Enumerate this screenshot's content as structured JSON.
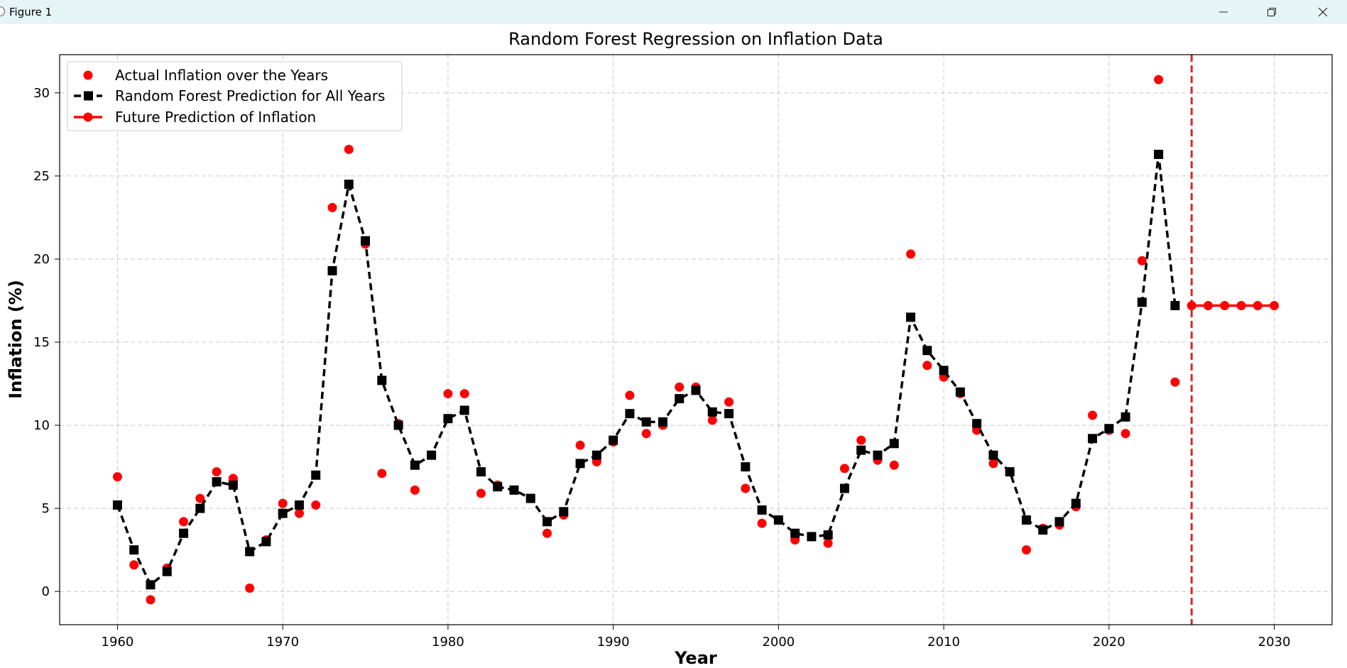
{
  "window": {
    "title": "Figure 1",
    "controls": [
      "minimize-icon",
      "restore-icon",
      "close-icon"
    ]
  },
  "chart_data": {
    "type": "line",
    "title": "Random Forest Regression on Inflation Data",
    "xlabel": "Year",
    "ylabel": "Inflation (%)",
    "xlim": [
      1956.5,
      2033.5
    ],
    "ylim": [
      -2,
      32.3
    ],
    "xticks": [
      1960,
      1970,
      1980,
      1990,
      2000,
      2010,
      2020,
      2030
    ],
    "yticks": [
      0,
      5,
      10,
      15,
      20,
      25,
      30
    ],
    "grid": true,
    "legend_position": "top-left",
    "cutoff_line_x": 2025,
    "colors": {
      "actual": "#ff0000",
      "prediction": "#000000",
      "future": "#ff0000",
      "cutoff": "#d62728"
    },
    "series": [
      {
        "name": "Actual Inflation over the Years",
        "style": "scatter",
        "x": [
          1960,
          1961,
          1962,
          1963,
          1964,
          1965,
          1966,
          1967,
          1968,
          1969,
          1970,
          1971,
          1972,
          1973,
          1974,
          1975,
          1976,
          1977,
          1978,
          1979,
          1980,
          1981,
          1982,
          1983,
          1984,
          1985,
          1986,
          1987,
          1988,
          1989,
          1990,
          1991,
          1992,
          1993,
          1994,
          1995,
          1996,
          1997,
          1998,
          1999,
          2000,
          2001,
          2002,
          2003,
          2004,
          2005,
          2006,
          2007,
          2008,
          2009,
          2010,
          2011,
          2012,
          2013,
          2014,
          2015,
          2016,
          2017,
          2018,
          2019,
          2020,
          2021,
          2022,
          2023,
          2024
        ],
        "y": [
          6.9,
          1.6,
          -0.5,
          1.4,
          4.2,
          5.6,
          7.2,
          6.8,
          0.2,
          3.1,
          5.3,
          4.7,
          5.2,
          23.1,
          26.6,
          20.9,
          7.1,
          10.1,
          6.1,
          8.2,
          11.9,
          11.9,
          5.9,
          6.4,
          6.1,
          5.6,
          3.5,
          4.6,
          8.8,
          7.8,
          9.0,
          11.8,
          9.5,
          10.0,
          12.3,
          12.3,
          10.3,
          11.4,
          6.2,
          4.1,
          4.3,
          3.1,
          3.3,
          2.9,
          7.4,
          9.1,
          7.9,
          7.6,
          20.3,
          13.6,
          12.9,
          11.9,
          9.7,
          7.7,
          7.2,
          2.5,
          3.8,
          4.0,
          5.1,
          10.6,
          9.7,
          9.5,
          19.9,
          30.8,
          12.6
        ]
      },
      {
        "name": "Random Forest Prediction for All Years",
        "style": "dashed-line-square",
        "x": [
          1960,
          1961,
          1962,
          1963,
          1964,
          1965,
          1966,
          1967,
          1968,
          1969,
          1970,
          1971,
          1972,
          1973,
          1974,
          1975,
          1976,
          1977,
          1978,
          1979,
          1980,
          1981,
          1982,
          1983,
          1984,
          1985,
          1986,
          1987,
          1988,
          1989,
          1990,
          1991,
          1992,
          1993,
          1994,
          1995,
          1996,
          1997,
          1998,
          1999,
          2000,
          2001,
          2002,
          2003,
          2004,
          2005,
          2006,
          2007,
          2008,
          2009,
          2010,
          2011,
          2012,
          2013,
          2014,
          2015,
          2016,
          2017,
          2018,
          2019,
          2020,
          2021,
          2022,
          2023,
          2024
        ],
        "y": [
          5.2,
          2.5,
          0.4,
          1.2,
          3.5,
          5.0,
          6.6,
          6.4,
          2.4,
          3.0,
          4.7,
          5.2,
          7.0,
          19.3,
          24.5,
          21.1,
          12.7,
          10.0,
          7.6,
          8.2,
          10.4,
          10.9,
          7.2,
          6.3,
          6.1,
          5.6,
          4.2,
          4.8,
          7.7,
          8.2,
          9.1,
          10.7,
          10.2,
          10.2,
          11.6,
          12.1,
          10.8,
          10.7,
          7.5,
          4.9,
          4.3,
          3.5,
          3.3,
          3.4,
          6.2,
          8.5,
          8.2,
          8.9,
          16.5,
          14.5,
          13.3,
          12.0,
          10.1,
          8.2,
          7.2,
          4.3,
          3.7,
          4.2,
          5.3,
          9.2,
          9.8,
          10.5,
          17.4,
          26.3,
          17.2
        ]
      },
      {
        "name": "Future Prediction of Inflation",
        "style": "solid-line-circle",
        "x": [
          2025,
          2026,
          2027,
          2028,
          2029,
          2030
        ],
        "y": [
          17.2,
          17.2,
          17.2,
          17.2,
          17.2,
          17.2
        ]
      }
    ]
  }
}
